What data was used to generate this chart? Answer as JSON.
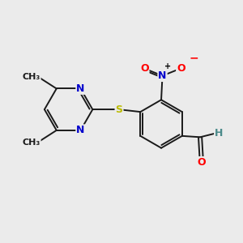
{
  "background_color": "#ebebeb",
  "bond_color": "#1a1a1a",
  "bond_width": 1.4,
  "figsize": [
    3.0,
    3.0
  ],
  "dpi": 100,
  "atom_colors": {
    "N": "#0000cc",
    "S": "#bbbb00",
    "O": "#ff0000",
    "H": "#4a8a8a",
    "C": "#1a1a1a"
  },
  "font_size": 9
}
